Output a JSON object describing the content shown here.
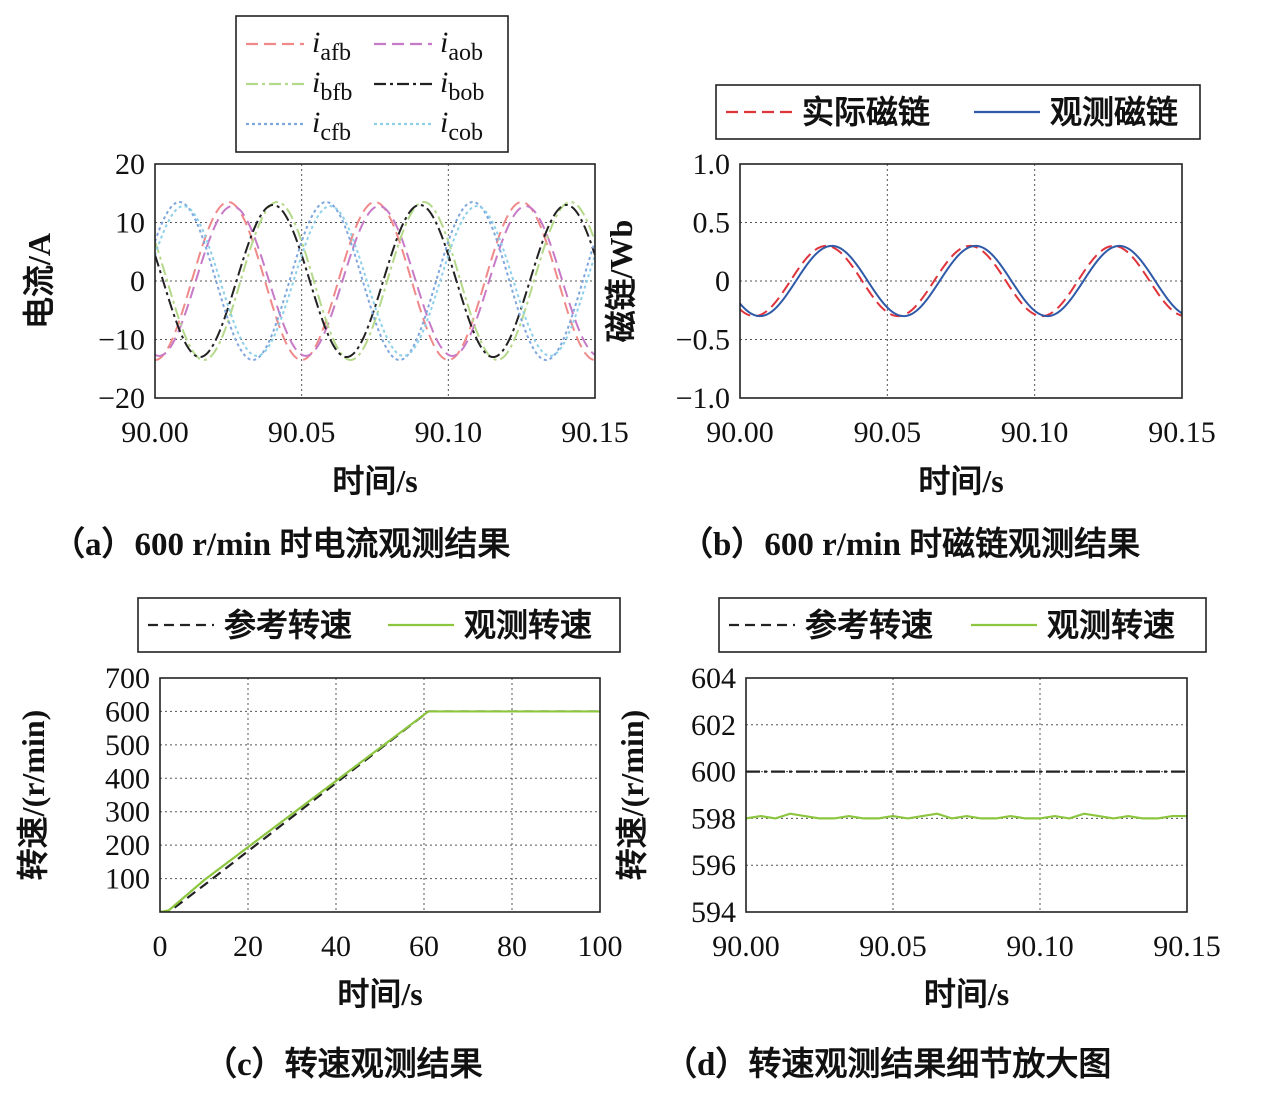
{
  "chart_data": [
    {
      "type": "line",
      "caption": "（a）600 r/min 时电流观测结果",
      "xlabel": "时间/s",
      "ylabel": "电流/A",
      "xlim": [
        90.0,
        90.15
      ],
      "ylim": [
        -20,
        20
      ],
      "xticks": [
        "90.00",
        "90.05",
        "90.10",
        "90.15"
      ],
      "yticks": [
        "−20",
        "−10",
        "0",
        "10",
        "20"
      ],
      "grid": true,
      "legend": "top, outside, 2 columns",
      "legend_entries": [
        {
          "sym": "i",
          "sub": "afb",
          "color": "#f08a8a",
          "dash": "12,6"
        },
        {
          "sym": "i",
          "sub": "aob",
          "color": "#c77ac7",
          "dash": "12,6"
        },
        {
          "sym": "i",
          "sub": "bfb",
          "color": "#b5d98a",
          "dash": "12,4,3,4"
        },
        {
          "sym": "i",
          "sub": "bob",
          "color": "#222222",
          "dash": "12,4,3,4"
        },
        {
          "sym": "i",
          "sub": "cfb",
          "color": "#7fa6dd",
          "dash": "3,3"
        },
        {
          "sym": "i",
          "sub": "cob",
          "color": "#8ed0e8",
          "dash": "3,3"
        }
      ],
      "series": [
        {
          "amplitude": 13.5,
          "frequency_hz": 20,
          "phase_deg": -90,
          "color": "#f08a8a",
          "dash": "12,6"
        },
        {
          "amplitude": 12.8,
          "frequency_hz": 20,
          "phase_deg": -100,
          "color": "#c77ac7",
          "dash": "12,6"
        },
        {
          "amplitude": 13.5,
          "frequency_hz": 20,
          "phase_deg": 150,
          "color": "#b5d98a",
          "dash": "12,4,3,4"
        },
        {
          "amplitude": 13.0,
          "frequency_hz": 20,
          "phase_deg": 160,
          "color": "#222222",
          "dash": "12,4,3,4"
        },
        {
          "amplitude": 13.5,
          "frequency_hz": 20,
          "phase_deg": 30,
          "color": "#7fa6dd",
          "dash": "3,3"
        },
        {
          "amplitude": 12.8,
          "frequency_hz": 20,
          "phase_deg": 20,
          "color": "#8ed0e8",
          "dash": "3,3"
        }
      ]
    },
    {
      "type": "line",
      "caption": "（b）600 r/min 时磁链观测结果",
      "xlabel": "时间/s",
      "ylabel": "磁链/Wb",
      "xlim": [
        90.0,
        90.15
      ],
      "ylim": [
        -1.0,
        1.0
      ],
      "xticks": [
        "90.00",
        "90.05",
        "90.10",
        "90.15"
      ],
      "yticks": [
        "−1.0",
        "−0.5",
        "0",
        "0.5",
        "1.0"
      ],
      "grid": true,
      "legend": "top, outside",
      "legend_entries": [
        {
          "label": "实际磁链",
          "color": "#e0343c",
          "dash": "12,6"
        },
        {
          "label": "观测磁链",
          "color": "#2f5aa8",
          "dash": ""
        }
      ],
      "series": [
        {
          "name": "实际磁链",
          "amplitude": 0.3,
          "frequency_hz": 20.5,
          "phase_deg": -126,
          "color": "#e0343c",
          "dash": "12,6"
        },
        {
          "name": "观测磁链",
          "amplitude": 0.3,
          "frequency_hz": 20.5,
          "phase_deg": -140,
          "color": "#2f5aa8",
          "dash": ""
        }
      ]
    },
    {
      "type": "line",
      "caption": "（c）转速观测结果",
      "xlabel": "时间/s",
      "ylabel": "转速/(r/min)",
      "xlim": [
        0,
        100
      ],
      "ylim": [
        0,
        700
      ],
      "xticks": [
        "0",
        "20",
        "40",
        "60",
        "80",
        "100"
      ],
      "yticks": [
        "",
        "100",
        "200",
        "300",
        "400",
        "500",
        "600",
        "700"
      ],
      "grid": true,
      "legend": "top, outside",
      "legend_entries": [
        {
          "label": "参考转速",
          "color": "#222222",
          "dash": "10,6"
        },
        {
          "label": "观测转速",
          "color": "#8cc63f",
          "dash": ""
        }
      ],
      "series": [
        {
          "name": "参考转速",
          "x": [
            0,
            2,
            10,
            61,
            100
          ],
          "y": [
            0,
            0,
            80,
            600,
            600
          ],
          "color": "#222222",
          "dash": "10,6"
        },
        {
          "name": "观测转速",
          "x": [
            0,
            2,
            10,
            61,
            100
          ],
          "y": [
            0,
            5,
            95,
            600,
            600
          ],
          "color": "#8cc63f",
          "dash": ""
        }
      ]
    },
    {
      "type": "line",
      "caption": "（d）转速观测结果细节放大图",
      "xlabel": "时间/s",
      "ylabel": "转速/(r/min)",
      "xlim": [
        90.0,
        90.15
      ],
      "ylim": [
        594,
        604
      ],
      "xticks": [
        "90.00",
        "90.05",
        "90.10",
        "90.15"
      ],
      "yticks": [
        "594",
        "596",
        "598",
        "600",
        "602",
        "604"
      ],
      "grid": true,
      "legend": "top, outside",
      "legend_entries": [
        {
          "label": "参考转速",
          "color": "#222222",
          "dash": "10,6"
        },
        {
          "label": "观测转速",
          "color": "#8cc63f",
          "dash": ""
        }
      ],
      "series": [
        {
          "name": "参考转速",
          "x": [
            90.0,
            90.15
          ],
          "y": [
            600,
            600
          ],
          "color": "#222222",
          "dash": "14,4,3,4"
        },
        {
          "name": "观测转速",
          "x": [
            90.0,
            90.005,
            90.01,
            90.015,
            90.02,
            90.025,
            90.03,
            90.035,
            90.04,
            90.045,
            90.05,
            90.055,
            90.06,
            90.065,
            90.07,
            90.075,
            90.08,
            90.085,
            90.09,
            90.095,
            90.1,
            90.105,
            90.11,
            90.115,
            90.12,
            90.125,
            90.13,
            90.135,
            90.14,
            90.145,
            90.15
          ],
          "y": [
            598.0,
            598.1,
            598.0,
            598.2,
            598.1,
            598.0,
            598.0,
            598.1,
            598.0,
            598.0,
            598.1,
            598.0,
            598.1,
            598.2,
            598.0,
            598.1,
            598.0,
            598.0,
            598.1,
            598.0,
            598.0,
            598.1,
            598.0,
            598.2,
            598.1,
            598.0,
            598.1,
            598.0,
            598.0,
            598.1,
            598.1
          ],
          "color": "#8cc63f",
          "dash": ""
        }
      ]
    }
  ]
}
